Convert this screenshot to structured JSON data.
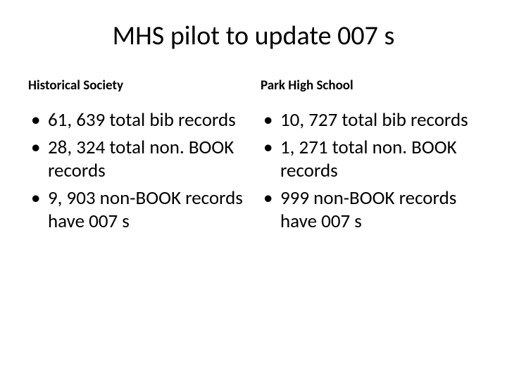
{
  "title": "MHS pilot to update 007 s",
  "columns": [
    {
      "heading": "Historical Society",
      "items": [
        "61, 639 total bib records",
        "28, 324 total non. BOOK records",
        "9, 903 non-BOOK records have 007 s"
      ]
    },
    {
      "heading": "Park High School",
      "items": [
        "10, 727 total bib records",
        "1, 271 total non. BOOK records",
        "999 non-BOOK records have 007 s"
      ]
    }
  ],
  "colors": {
    "background": "#ffffff",
    "text": "#000000"
  },
  "typography": {
    "title_fontsize": 38,
    "heading_fontsize": 19,
    "body_fontsize": 27,
    "font_family": "Calibri"
  }
}
